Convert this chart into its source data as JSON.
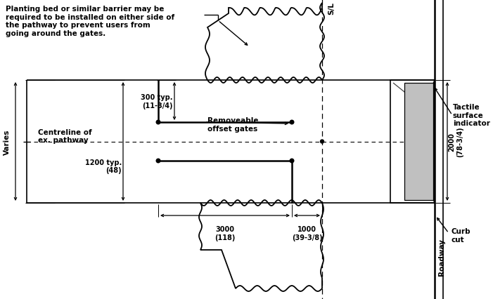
{
  "bg_color": "#ffffff",
  "line_color": "#000000",
  "figsize": [
    7.01,
    4.27
  ],
  "dpi": 100,
  "annotation_text_planting": "Planting bed or similar barrier may be\nrequired to be installed on either side of\nthe pathway to prevent users from\ngoing around the gates.",
  "annotation_text_tactile": "Tactile\nsurface\nindicator",
  "annotation_text_removeable": "Removeable\noffset gates",
  "annotation_text_centreline": "Centreline of\nex. pathway",
  "annotation_text_varies": "Varies",
  "annotation_text_roadway": "Roadway",
  "annotation_text_curb": "Curb\ncut",
  "annotation_text_sl": "S/L",
  "dim_300": "300 typ.\n(11-3/4)",
  "dim_1200": "1200 typ.\n(48)",
  "dim_3000": "3000\n(118)",
  "dim_1000": "1000\n(39-3/8)",
  "dim_2000": "2000\n(78-3/4)",
  "gray_fill": "#c0c0c0",
  "gray_dark": "#888888"
}
